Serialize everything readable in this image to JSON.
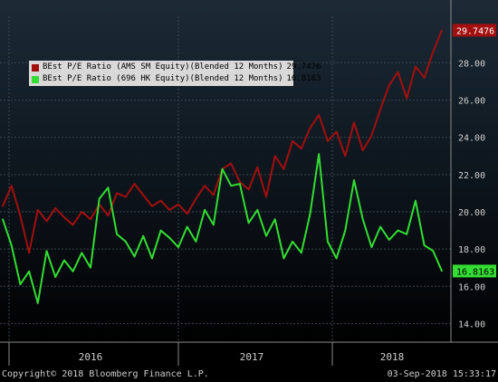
{
  "chart_data": {
    "type": "line",
    "ylim": [
      13,
      30.5
    ],
    "y_ticks": [
      "14.00",
      "16.00",
      "18.00",
      "20.00",
      "22.00",
      "24.00",
      "26.00",
      "28.00"
    ],
    "x_period_labels": [
      "2016",
      "2017",
      "2018"
    ],
    "grid": true,
    "legend_position": "top-left",
    "series": [
      {
        "name": "BEst P/E Ratio (AMS SM Equity)(Blended 12 Months)",
        "last_value": "29.7476",
        "color": "#a30f0f",
        "x": [
          0,
          0.02,
          0.04,
          0.06,
          0.08,
          0.1,
          0.12,
          0.14,
          0.16,
          0.18,
          0.2,
          0.22,
          0.24,
          0.26,
          0.28,
          0.3,
          0.32,
          0.34,
          0.36,
          0.38,
          0.4,
          0.42,
          0.44,
          0.46,
          0.48,
          0.5,
          0.52,
          0.54,
          0.56,
          0.58,
          0.6,
          0.62,
          0.64,
          0.66,
          0.68,
          0.7,
          0.72,
          0.74,
          0.76,
          0.78,
          0.8,
          0.82,
          0.84,
          0.86,
          0.88,
          0.9,
          0.92,
          0.94,
          0.96,
          0.98,
          1.0
        ],
        "values": [
          20.3,
          21.4,
          19.8,
          17.8,
          20.1,
          19.5,
          20.2,
          19.7,
          19.3,
          20.0,
          19.6,
          20.4,
          19.8,
          21.0,
          20.8,
          21.5,
          20.9,
          20.3,
          20.6,
          20.1,
          20.4,
          19.9,
          20.7,
          21.4,
          20.9,
          22.3,
          22.6,
          21.6,
          21.2,
          22.4,
          20.8,
          23.0,
          22.3,
          23.8,
          23.4,
          24.5,
          25.2,
          23.8,
          24.3,
          23.0,
          24.8,
          23.3,
          24.1,
          25.5,
          26.8,
          27.5,
          26.1,
          27.8,
          27.2,
          28.6,
          29.75
        ]
      },
      {
        "name": "BEst P/E Ratio (696 HK Equity)(Blended 12 Months)",
        "last_value": "16.8163",
        "color": "#33dd33",
        "x": [
          0,
          0.02,
          0.04,
          0.06,
          0.08,
          0.1,
          0.12,
          0.14,
          0.16,
          0.18,
          0.2,
          0.22,
          0.24,
          0.26,
          0.28,
          0.3,
          0.32,
          0.34,
          0.36,
          0.38,
          0.4,
          0.42,
          0.44,
          0.46,
          0.48,
          0.5,
          0.52,
          0.54,
          0.56,
          0.58,
          0.6,
          0.62,
          0.64,
          0.66,
          0.68,
          0.7,
          0.72,
          0.74,
          0.76,
          0.78,
          0.8,
          0.82,
          0.84,
          0.86,
          0.88,
          0.9,
          0.92,
          0.94,
          0.96,
          0.98,
          1.0
        ],
        "values": [
          19.6,
          18.2,
          16.1,
          16.8,
          15.1,
          17.9,
          16.5,
          17.4,
          16.8,
          17.8,
          17.0,
          20.7,
          21.3,
          18.8,
          18.4,
          17.6,
          18.7,
          17.5,
          19.0,
          18.6,
          18.1,
          19.2,
          18.4,
          20.1,
          19.3,
          22.3,
          21.4,
          21.5,
          19.4,
          20.1,
          18.7,
          19.6,
          17.5,
          18.4,
          17.8,
          19.9,
          23.1,
          18.4,
          17.5,
          19.0,
          21.7,
          19.6,
          18.1,
          19.2,
          18.5,
          19.0,
          18.8,
          20.6,
          18.2,
          17.9,
          16.82
        ]
      }
    ]
  },
  "footer": {
    "copyright": "Copyright© 2018 Bloomberg Finance L.P.",
    "timestamp": "03-Sep-2018 15:33:17"
  }
}
